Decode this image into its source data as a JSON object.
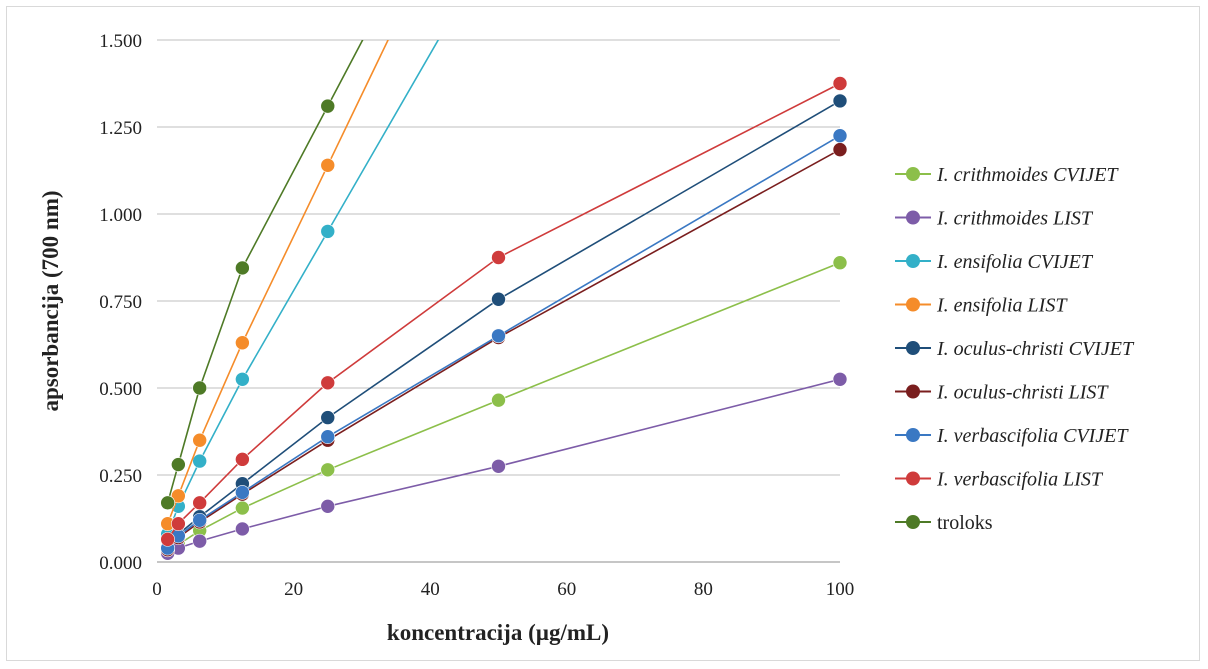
{
  "chart_data": {
    "type": "line",
    "xlabel": "koncentracija (µg/mL)",
    "ylabel": "apsorbancija  (700 nm)",
    "xlim": [
      0,
      100
    ],
    "ylim": [
      0,
      1.5
    ],
    "xticks": [
      "0",
      "20",
      "40",
      "60",
      "80",
      "100"
    ],
    "yticks": [
      "0.000",
      "0.250",
      "0.500",
      "0.750",
      "1.000",
      "1.250",
      "1.500"
    ],
    "grid": "horizontal",
    "legend_position": "right",
    "series": [
      {
        "name": "I. crithmoides CVIJET",
        "italic": true,
        "color": "#8cbf4a",
        "x": [
          1.5625,
          3.125,
          6.25,
          12.5,
          25,
          50,
          100
        ],
        "y": [
          0.025,
          0.05,
          0.09,
          0.155,
          0.265,
          0.465,
          0.86
        ]
      },
      {
        "name": "I. crithmoides LIST",
        "italic": true,
        "color": "#7d5ca8",
        "x": [
          1.5625,
          3.125,
          6.25,
          12.5,
          25,
          50,
          100
        ],
        "y": [
          0.025,
          0.04,
          0.06,
          0.095,
          0.16,
          0.275,
          0.525
        ]
      },
      {
        "name": "I. ensifolia CVIJET",
        "italic": true,
        "color": "#33b0c8",
        "x": [
          1.5625,
          3.125,
          6.25,
          12.5,
          25
        ],
        "y": [
          0.08,
          0.16,
          0.29,
          0.525,
          0.95
        ]
      },
      {
        "name": "I. ensifolia LIST",
        "italic": true,
        "color": "#f58c2a",
        "x": [
          1.5625,
          3.125,
          6.25,
          12.5,
          25
        ],
        "y": [
          0.11,
          0.19,
          0.35,
          0.63,
          1.14
        ]
      },
      {
        "name": "I. oculus-christi CVIJET",
        "italic": true,
        "color": "#1f4e79",
        "x": [
          1.5625,
          3.125,
          6.25,
          12.5,
          25,
          50,
          100
        ],
        "y": [
          0.04,
          0.08,
          0.13,
          0.225,
          0.415,
          0.755,
          1.325
        ]
      },
      {
        "name": "I. oculus-christi LIST",
        "italic": true,
        "color": "#7a1e1e",
        "x": [
          1.5625,
          3.125,
          6.25,
          12.5,
          25,
          50,
          100
        ],
        "y": [
          0.035,
          0.07,
          0.115,
          0.195,
          0.35,
          0.645,
          1.185
        ]
      },
      {
        "name": "I. verbascifolia CVIJET",
        "italic": true,
        "color": "#3a78c3",
        "x": [
          1.5625,
          3.125,
          6.25,
          12.5,
          25,
          50,
          100
        ],
        "y": [
          0.04,
          0.075,
          0.12,
          0.2,
          0.36,
          0.65,
          1.225
        ]
      },
      {
        "name": "I. verbascifolia LIST",
        "italic": true,
        "color": "#cf3b3b",
        "x": [
          1.5625,
          3.125,
          6.25,
          12.5,
          25,
          50,
          100
        ],
        "y": [
          0.065,
          0.11,
          0.17,
          0.295,
          0.515,
          0.875,
          1.375
        ]
      },
      {
        "name": "troloks",
        "italic": false,
        "color": "#4e7a26",
        "x": [
          1.5625,
          3.125,
          6.25,
          12.5,
          25
        ],
        "y": [
          0.17,
          0.28,
          0.5,
          0.845,
          1.31
        ]
      }
    ]
  }
}
